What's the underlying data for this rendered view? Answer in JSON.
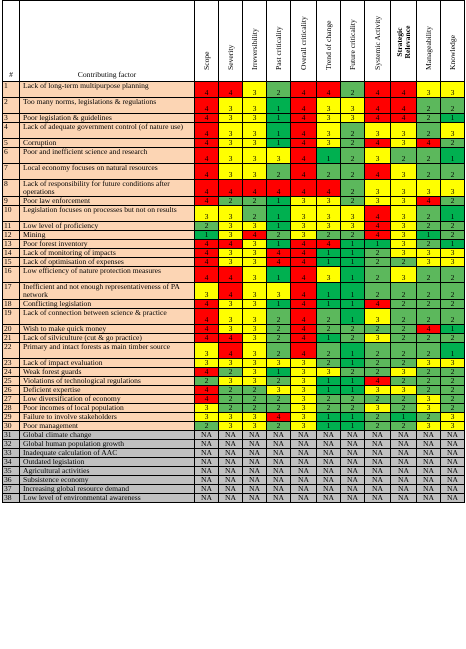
{
  "header": {
    "num": "#",
    "factor": "Contributing factor",
    "columns": [
      "Scope",
      "Severity",
      "Irreversibility",
      "Past criticality",
      "Overall criticality",
      "Trend of change",
      "Future criticality",
      "Systemic Activity",
      "Strategic Relevance",
      "Manageability",
      "Knowledge"
    ]
  },
  "rows": [
    {
      "n": "1",
      "f": "Lack of long-term multipurpose planning",
      "v": [
        "4",
        "4",
        "3",
        "2",
        "4",
        "4",
        "2",
        "4",
        "4",
        "3",
        "3"
      ]
    },
    {
      "n": "2",
      "f": "Too many norms, legislations & regulations",
      "v": [
        "4",
        "3",
        "3",
        "1",
        "4",
        "3",
        "3",
        "4",
        "4",
        "2",
        "2"
      ]
    },
    {
      "n": "3",
      "f": "Poor legislation & guidelines",
      "v": [
        "4",
        "3",
        "3",
        "1",
        "4",
        "3",
        "3",
        "4",
        "4",
        "2",
        "1"
      ]
    },
    {
      "n": "4",
      "f": "Lack of adequate government control (of nature use)",
      "v": [
        "4",
        "3",
        "3",
        "1",
        "4",
        "3",
        "2",
        "3",
        "3",
        "2",
        "3"
      ]
    },
    {
      "n": "5",
      "f": "Corruption",
      "v": [
        "4",
        "3",
        "3",
        "1",
        "4",
        "3",
        "2",
        "4",
        "3",
        "4",
        "2"
      ]
    },
    {
      "n": "6",
      "f": "Poor and inefficient science and research",
      "v": [
        "4",
        "3",
        "3",
        "3",
        "4",
        "1",
        "2",
        "3",
        "2",
        "2",
        "1"
      ]
    },
    {
      "n": "7",
      "f": "Local economy focuses on natural resources",
      "v": [
        "4",
        "3",
        "3",
        "2",
        "4",
        "2",
        "2",
        "4",
        "3",
        "2",
        "2"
      ]
    },
    {
      "n": "8",
      "f": "Lack of responsibility for future conditions after operations",
      "v": [
        "4",
        "4",
        "4",
        "4",
        "4",
        "4",
        "2",
        "3",
        "3",
        "3",
        "3"
      ]
    },
    {
      "n": "9",
      "f": "Poor law enforcement",
      "v": [
        "4",
        "2",
        "2",
        "1",
        "3",
        "3",
        "2",
        "3",
        "3",
        "4",
        "2"
      ]
    },
    {
      "n": "10",
      "f": "Legislation focuses on processes but not on results",
      "v": [
        "3",
        "3",
        "2",
        "1",
        "3",
        "3",
        "3",
        "4",
        "3",
        "2",
        "1"
      ]
    },
    {
      "n": "11",
      "f": "Low level of proficiency",
      "v": [
        "2",
        "3",
        "3",
        "1",
        "3",
        "3",
        "3",
        "4",
        "3",
        "2",
        "2"
      ]
    },
    {
      "n": "12",
      "f": "Mining",
      "v": [
        "1",
        "3",
        "4",
        "2",
        "3",
        "2",
        "2",
        "4",
        "3",
        "1",
        "2"
      ]
    },
    {
      "n": "13",
      "f": "Poor forest inventory",
      "v": [
        "4",
        "4",
        "3",
        "1",
        "4",
        "4",
        "1",
        "1",
        "3",
        "2",
        "1"
      ]
    },
    {
      "n": "14",
      "f": "Lack of monitoring of impacts",
      "v": [
        "4",
        "3",
        "3",
        "4",
        "4",
        "1",
        "1",
        "2",
        "3",
        "3",
        "3"
      ]
    },
    {
      "n": "15",
      "f": "Lack of optimisation of expenses",
      "v": [
        "4",
        "3",
        "3",
        "4",
        "4",
        "1",
        "1",
        "2",
        "2",
        "3",
        "3"
      ]
    },
    {
      "n": "16",
      "f": "Low efficiency of nature protection measures",
      "v": [
        "4",
        "4",
        "3",
        "1",
        "4",
        "3",
        "1",
        "2",
        "3",
        "2",
        "2"
      ]
    },
    {
      "n": "17",
      "f": "Inefficient and not enough representativeness of PA network",
      "v": [
        "3",
        "4",
        "3",
        "3",
        "4",
        "1",
        "1",
        "2",
        "2",
        "2",
        "2"
      ]
    },
    {
      "n": "18",
      "f": "Conflicting legislation",
      "v": [
        "4",
        "3",
        "3",
        "1",
        "4",
        "1",
        "1",
        "4",
        "2",
        "2",
        "2"
      ]
    },
    {
      "n": "19",
      "f": "Lack of connection between science & practice",
      "v": [
        "4",
        "3",
        "3",
        "2",
        "4",
        "2",
        "1",
        "3",
        "2",
        "2",
        "2"
      ]
    },
    {
      "n": "20",
      "f": "Wish to make quick money",
      "v": [
        "4",
        "3",
        "3",
        "2",
        "4",
        "2",
        "2",
        "2",
        "2",
        "4",
        "1"
      ]
    },
    {
      "n": "21",
      "f": "Lack of silviculture (cut & go practice)",
      "v": [
        "4",
        "4",
        "3",
        "2",
        "4",
        "1",
        "2",
        "3",
        "2",
        "2",
        "2"
      ]
    },
    {
      "n": "22",
      "f": "Primary and intact forests as main timber source",
      "v": [
        "3",
        "4",
        "3",
        "2",
        "4",
        "2",
        "1",
        "2",
        "2",
        "2",
        "1"
      ]
    },
    {
      "n": "23",
      "f": "Lack of impact evaluation",
      "v": [
        "3",
        "3",
        "3",
        "3",
        "3",
        "2",
        "1",
        "2",
        "2",
        "3",
        "3"
      ]
    },
    {
      "n": "24",
      "f": "Weak forest guards",
      "v": [
        "4",
        "2",
        "3",
        "1",
        "3",
        "3",
        "2",
        "2",
        "3",
        "2",
        "2"
      ]
    },
    {
      "n": "25",
      "f": "Violations of technological regulations",
      "v": [
        "2",
        "3",
        "3",
        "2",
        "3",
        "1",
        "1",
        "4",
        "2",
        "2",
        "2"
      ]
    },
    {
      "n": "26",
      "f": "Deficient expertise",
      "v": [
        "4",
        "2",
        "2",
        "3",
        "3",
        "1",
        "1",
        "3",
        "3",
        "2",
        "2"
      ]
    },
    {
      "n": "27",
      "f": "Low diversification of economy",
      "v": [
        "4",
        "2",
        "2",
        "2",
        "3",
        "2",
        "2",
        "2",
        "2",
        "3",
        "2"
      ]
    },
    {
      "n": "28",
      "f": "Poor incomes of local population",
      "v": [
        "3",
        "2",
        "2",
        "2",
        "3",
        "2",
        "2",
        "3",
        "2",
        "3",
        "2"
      ]
    },
    {
      "n": "29",
      "f": "Failure to involve stakeholders",
      "v": [
        "3",
        "3",
        "3",
        "4",
        "3",
        "1",
        "1",
        "2",
        "1",
        "2",
        "3"
      ]
    },
    {
      "n": "30",
      "f": "Poor management",
      "v": [
        "2",
        "3",
        "3",
        "2",
        "3",
        "1",
        "1",
        "2",
        "2",
        "3",
        "3"
      ]
    },
    {
      "n": "31",
      "f": "Global climate change",
      "v": [
        "NA",
        "NA",
        "NA",
        "NA",
        "NA",
        "NA",
        "NA",
        "NA",
        "NA",
        "NA",
        "NA"
      ]
    },
    {
      "n": "32",
      "f": "Global human population growth",
      "v": [
        "NA",
        "NA",
        "NA",
        "NA",
        "NA",
        "NA",
        "NA",
        "NA",
        "NA",
        "NA",
        "NA"
      ]
    },
    {
      "n": "33",
      "f": "Inadequate calculation of AAC",
      "v": [
        "NA",
        "NA",
        "NA",
        "NA",
        "NA",
        "NA",
        "NA",
        "NA",
        "NA",
        "NA",
        "NA"
      ]
    },
    {
      "n": "34",
      "f": "Outdated legislation",
      "v": [
        "NA",
        "NA",
        "NA",
        "NA",
        "NA",
        "NA",
        "NA",
        "NA",
        "NA",
        "NA",
        "NA"
      ]
    },
    {
      "n": "35",
      "f": "Agricultural activities",
      "v": [
        "NA",
        "NA",
        "NA",
        "NA",
        "NA",
        "NA",
        "NA",
        "NA",
        "NA",
        "NA",
        "NA"
      ]
    },
    {
      "n": "36",
      "f": "Subsistence economy",
      "v": [
        "NA",
        "NA",
        "NA",
        "NA",
        "NA",
        "NA",
        "NA",
        "NA",
        "NA",
        "NA",
        "NA"
      ]
    },
    {
      "n": "37",
      "f": "Increasing global resource demand",
      "v": [
        "NA",
        "NA",
        "NA",
        "NA",
        "NA",
        "NA",
        "NA",
        "NA",
        "NA",
        "NA",
        "NA"
      ]
    },
    {
      "n": "38",
      "f": "Low level of environmental awareness",
      "v": [
        "NA",
        "NA",
        "NA",
        "NA",
        "NA",
        "NA",
        "NA",
        "NA",
        "NA",
        "NA",
        "NA"
      ]
    }
  ],
  "colors": {
    "4": "#ff0000",
    "3": "#ffff00",
    "2": "#5cb85c",
    "1": "#00b050",
    "NA": "#c0c0c0",
    "factor_bg": "#fcd5b4"
  }
}
